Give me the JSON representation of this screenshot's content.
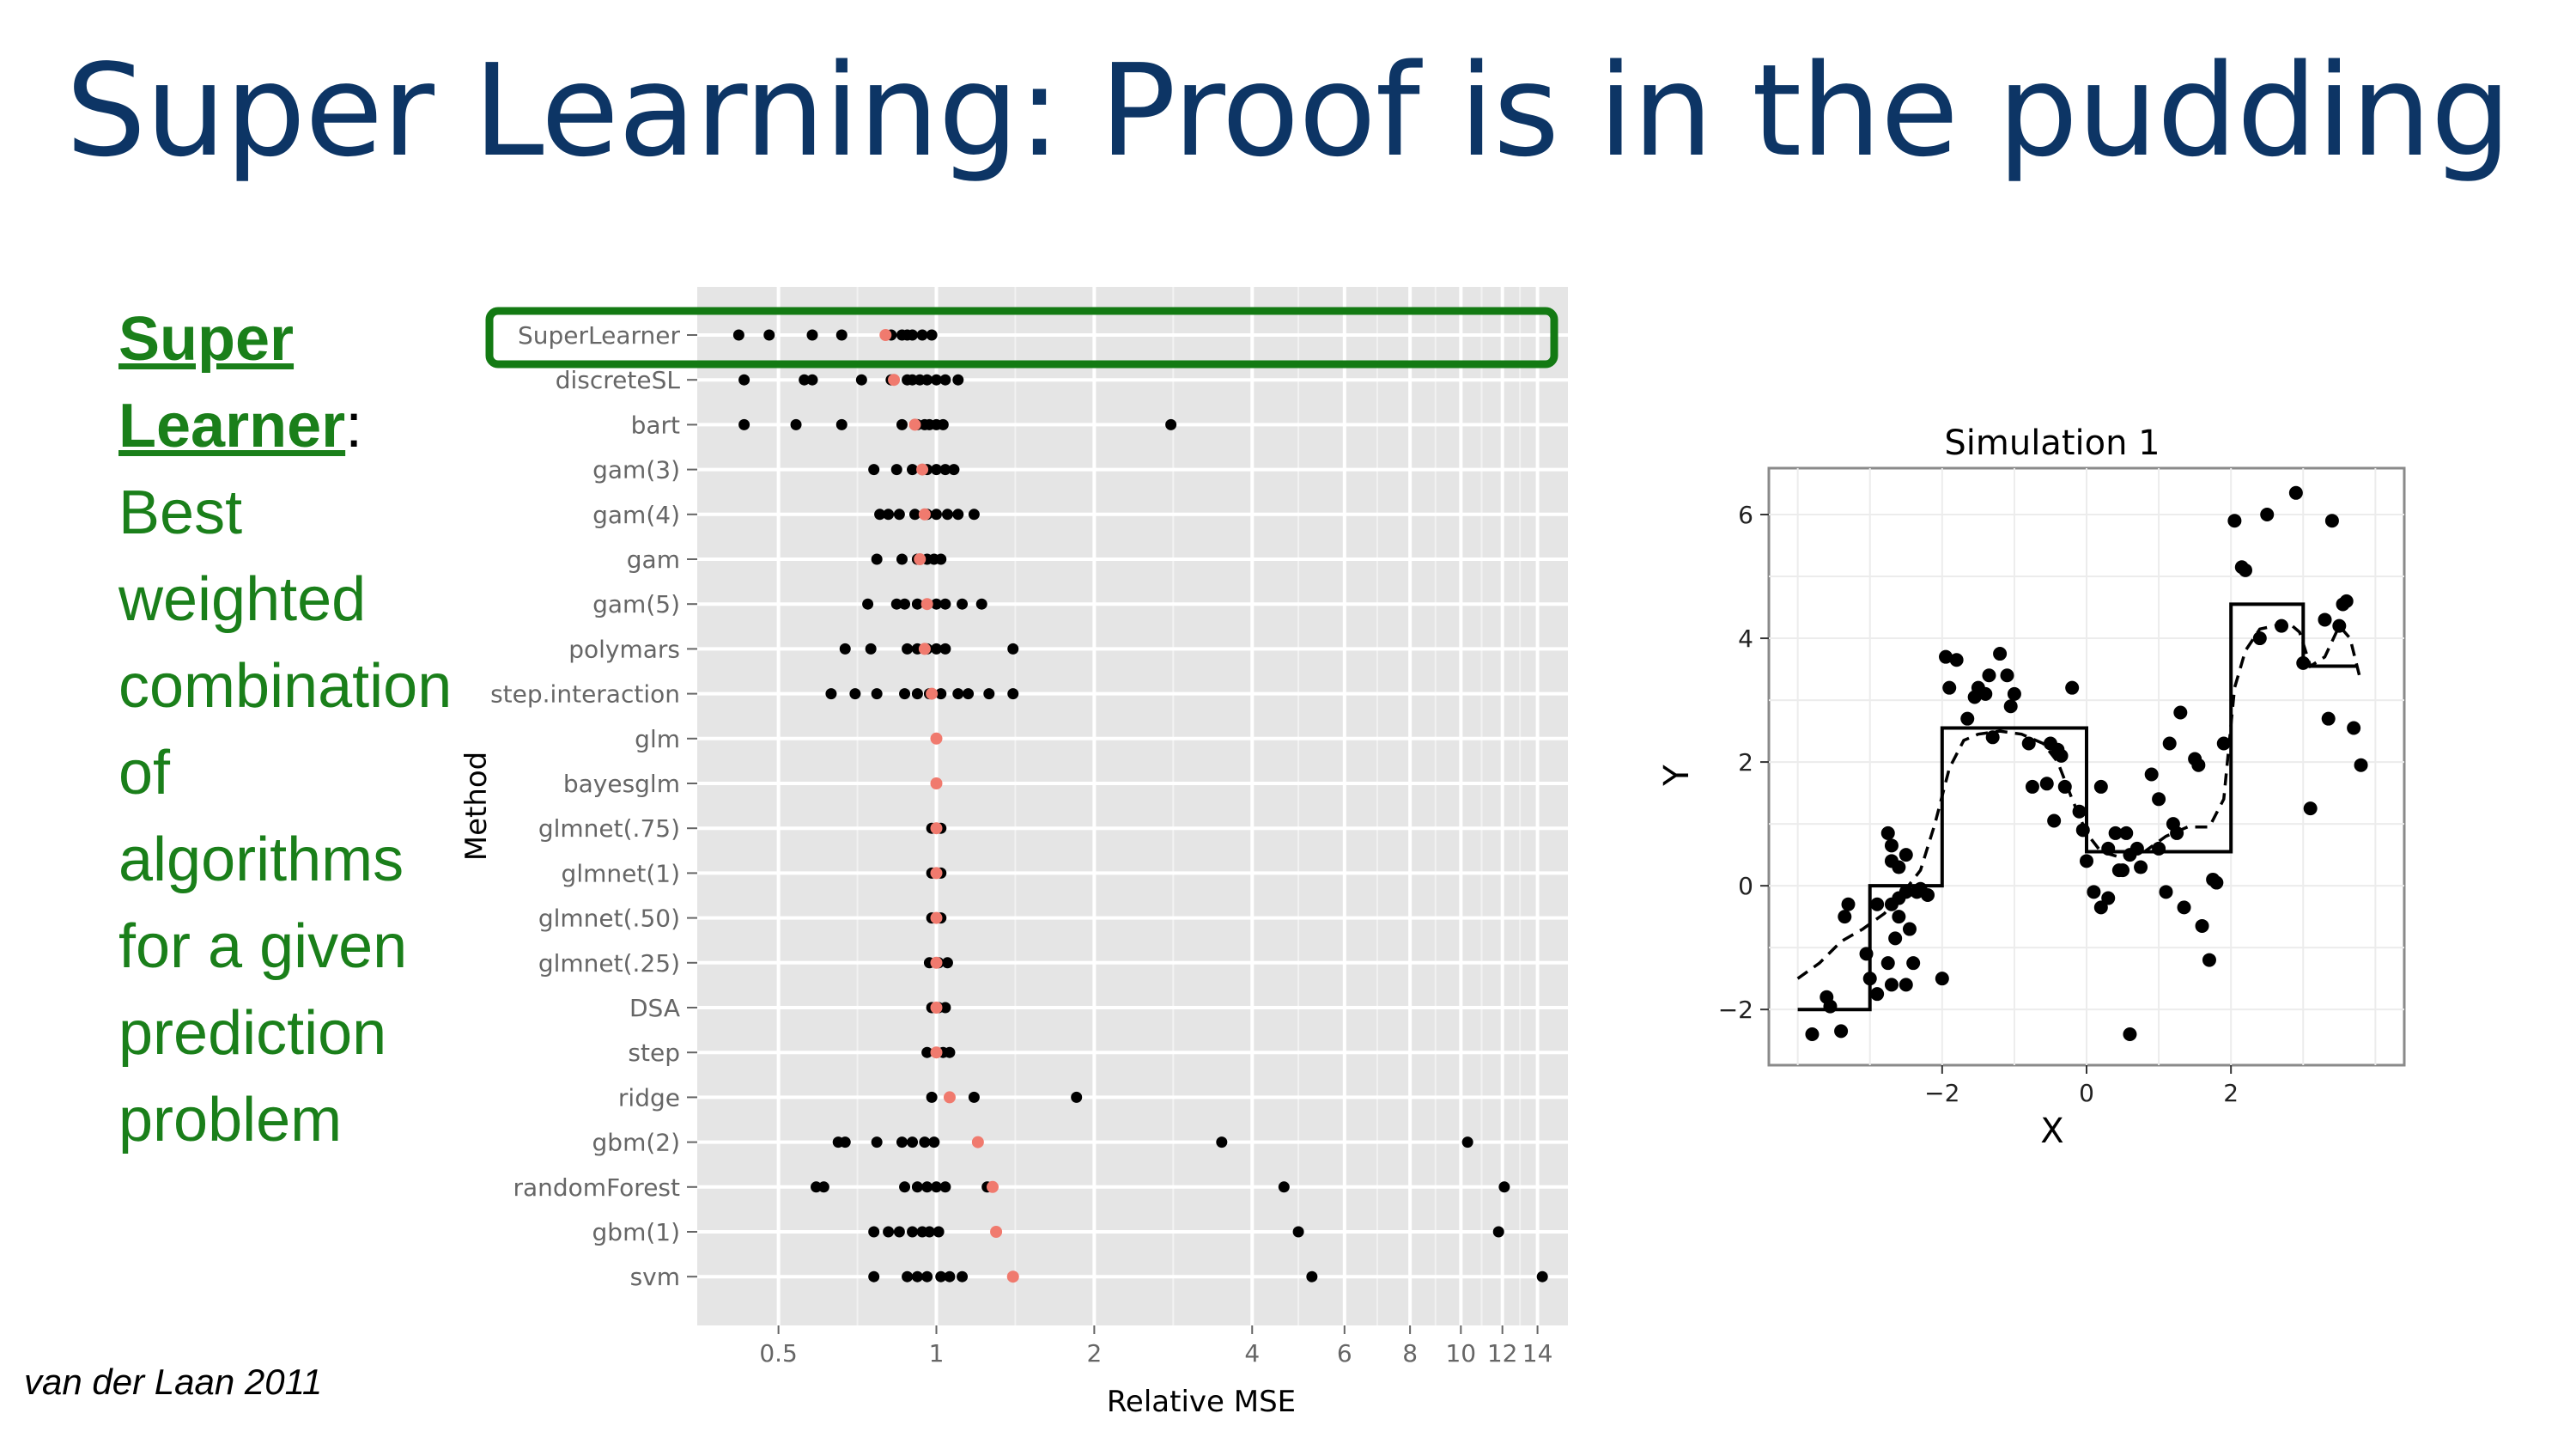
{
  "slide": {
    "title": "Super Learning: Proof is in the pudding",
    "left_term_line1": "Super",
    "left_term_line2": "Learner",
    "left_colon": ":",
    "left_lines": [
      "Best",
      "weighted",
      "combination",
      "of",
      "algorithms",
      "for a given",
      "prediction",
      "problem"
    ],
    "citation": "van der Laan 2011"
  },
  "colors": {
    "title": "#0d3565",
    "text_green": "#1a7f1a",
    "highlight_box": "#137a13",
    "panel_bg": "#e5e5e5",
    "point_black": "#000000",
    "point_red": "#f07a6e"
  },
  "chart_data": [
    {
      "type": "scatter",
      "xlabel": "Relative MSE",
      "ylabel": "Method",
      "x_scale": "log",
      "xlim": [
        0.35,
        16
      ],
      "x_ticks": [
        0.5,
        1,
        2,
        4,
        6,
        8,
        10,
        12,
        14
      ],
      "x_tick_labels": [
        "0.5",
        "1",
        "2",
        "4",
        "6",
        "8",
        "10",
        "12",
        "14"
      ],
      "grid": true,
      "highlighted_category": "SuperLearner",
      "categories": [
        "SuperLearner",
        "discreteSL",
        "bart",
        "gam(3)",
        "gam(4)",
        "gam",
        "gam(5)",
        "polymars",
        "step.interaction",
        "glm",
        "bayesglm",
        "glmnet(.75)",
        "glmnet(1)",
        "glmnet(.50)",
        "glmnet(.25)",
        "DSA",
        "step",
        "ridge",
        "gbm(2)",
        "randomForest",
        "gbm(1)",
        "svm"
      ],
      "series": [
        {
          "values": [
            [
              0.42,
              0.48,
              0.58,
              0.66,
              0.82,
              0.86,
              0.88,
              0.9,
              0.94,
              0.98
            ],
            [
              0.43,
              0.56,
              0.58,
              0.72,
              0.82,
              0.88,
              0.9,
              0.93,
              0.96,
              1.0,
              1.04,
              1.1
            ],
            [
              0.43,
              0.54,
              0.66,
              0.86,
              0.92,
              0.95,
              0.97,
              1.0,
              1.03,
              2.8
            ],
            [
              0.76,
              0.84,
              0.9,
              0.96,
              1.0,
              1.04,
              1.08
            ],
            [
              0.78,
              0.81,
              0.85,
              0.91,
              0.96,
              1.0,
              1.05,
              1.1,
              1.18
            ],
            [
              0.77,
              0.86,
              0.92,
              0.96,
              0.99,
              1.02
            ],
            [
              0.74,
              0.84,
              0.87,
              0.92,
              0.96,
              1.0,
              1.04,
              1.12,
              1.22
            ],
            [
              0.67,
              0.75,
              0.88,
              0.92,
              0.96,
              1.0,
              1.04,
              1.4
            ],
            [
              0.63,
              0.7,
              0.77,
              0.87,
              0.92,
              0.97,
              1.02,
              1.1,
              1.15,
              1.26,
              1.4
            ],
            [],
            [],
            [
              0.98,
              1.02
            ],
            [
              0.98,
              1.02
            ],
            [
              0.98,
              1.02
            ],
            [
              0.97,
              1.01,
              1.05
            ],
            [
              0.98,
              1.01,
              1.04
            ],
            [
              0.96,
              1.0,
              1.03,
              1.06
            ],
            [
              0.98,
              1.18,
              1.85
            ],
            [
              0.65,
              0.67,
              0.77,
              0.86,
              0.9,
              0.95,
              0.99,
              3.5,
              10.3
            ],
            [
              0.59,
              0.61,
              0.87,
              0.92,
              0.96,
              1.0,
              1.04,
              1.25,
              4.6,
              12.1
            ],
            [
              0.76,
              0.81,
              0.85,
              0.9,
              0.94,
              0.97,
              1.01,
              4.9,
              11.8
            ],
            [
              0.76,
              0.88,
              0.92,
              0.96,
              1.02,
              1.06,
              1.12,
              5.2,
              14.3
            ]
          ],
          "color": "#000000"
        },
        {
          "values": [
            0.8,
            0.83,
            0.91,
            0.94,
            0.95,
            0.93,
            0.96,
            0.95,
            0.98,
            1.0,
            1.0,
            1.0,
            1.0,
            1.0,
            1.0,
            1.0,
            1.0,
            1.06,
            1.2,
            1.28,
            1.3,
            1.4
          ],
          "color": "#f07a6e"
        }
      ]
    },
    {
      "type": "scatter",
      "title": "Simulation 1",
      "xlabel": "X",
      "ylabel": "Y",
      "xlim": [
        -4.4,
        4.4
      ],
      "ylim": [
        -2.9,
        6.75
      ],
      "x_ticks": [
        -2,
        0,
        2
      ],
      "x_tick_labels": [
        "−2",
        "0",
        "2"
      ],
      "y_ticks": [
        -2,
        0,
        2,
        4,
        6
      ],
      "y_tick_labels": [
        "−2",
        "0",
        "2",
        "4",
        "6"
      ],
      "grid": true,
      "points": [
        [
          -3.8,
          -2.4
        ],
        [
          -3.6,
          -1.8
        ],
        [
          -3.4,
          -2.35
        ],
        [
          -3.55,
          -1.95
        ],
        [
          -3.3,
          -0.3
        ],
        [
          -3.35,
          -0.5
        ],
        [
          -3.05,
          -1.1
        ],
        [
          -3.0,
          -1.5
        ],
        [
          -2.9,
          -0.3
        ],
        [
          -2.9,
          -1.75
        ],
        [
          -2.75,
          -1.25
        ],
        [
          -2.7,
          -1.6
        ],
        [
          -2.7,
          -0.3
        ],
        [
          -2.6,
          -0.5
        ],
        [
          -2.6,
          -0.2
        ],
        [
          -2.65,
          -0.85
        ],
        [
          -2.5,
          -0.1
        ],
        [
          -2.5,
          -1.6
        ],
        [
          -2.45,
          -0.7
        ],
        [
          -2.4,
          -1.25
        ],
        [
          -2.35,
          -0.1
        ],
        [
          -2.2,
          -0.15
        ],
        [
          -2.3,
          -0.05
        ],
        [
          -2.0,
          -1.5
        ],
        [
          -2.75,
          0.85
        ],
        [
          -2.7,
          0.65
        ],
        [
          -2.7,
          0.4
        ],
        [
          -2.6,
          0.3
        ],
        [
          -2.5,
          0.5
        ],
        [
          -1.95,
          3.7
        ],
        [
          -1.8,
          3.65
        ],
        [
          -1.9,
          3.2
        ],
        [
          -1.65,
          2.7
        ],
        [
          -1.55,
          3.05
        ],
        [
          -1.5,
          3.2
        ],
        [
          -1.4,
          3.1
        ],
        [
          -1.3,
          2.4
        ],
        [
          -1.35,
          3.4
        ],
        [
          -1.2,
          3.75
        ],
        [
          -1.1,
          3.4
        ],
        [
          -1.0,
          3.1
        ],
        [
          -1.05,
          2.9
        ],
        [
          -0.8,
          2.3
        ],
        [
          -0.75,
          1.6
        ],
        [
          -0.55,
          1.65
        ],
        [
          -0.5,
          2.3
        ],
        [
          -0.4,
          2.2
        ],
        [
          -0.35,
          2.1
        ],
        [
          -0.3,
          1.6
        ],
        [
          -0.2,
          3.2
        ],
        [
          -0.45,
          1.05
        ],
        [
          -0.1,
          1.2
        ],
        [
          -0.05,
          0.9
        ],
        [
          0.0,
          0.4
        ],
        [
          0.2,
          1.6
        ],
        [
          0.1,
          -0.1
        ],
        [
          0.2,
          -0.35
        ],
        [
          0.3,
          -0.2
        ],
        [
          0.4,
          0.85
        ],
        [
          0.45,
          0.25
        ],
        [
          0.55,
          0.85
        ],
        [
          0.6,
          0.5
        ],
        [
          0.3,
          0.6
        ],
        [
          0.5,
          0.25
        ],
        [
          0.7,
          0.6
        ],
        [
          0.6,
          -2.4
        ],
        [
          0.75,
          0.3
        ],
        [
          0.9,
          1.8
        ],
        [
          1.0,
          1.4
        ],
        [
          1.0,
          0.6
        ],
        [
          1.1,
          -0.1
        ],
        [
          1.15,
          2.3
        ],
        [
          1.2,
          1.0
        ],
        [
          1.25,
          0.85
        ],
        [
          1.3,
          2.8
        ],
        [
          1.35,
          -0.35
        ],
        [
          1.5,
          2.05
        ],
        [
          1.55,
          1.95
        ],
        [
          1.6,
          -0.65
        ],
        [
          1.7,
          -1.2
        ],
        [
          1.75,
          0.1
        ],
        [
          1.8,
          0.05
        ],
        [
          1.9,
          2.3
        ],
        [
          2.05,
          5.9
        ],
        [
          2.15,
          5.15
        ],
        [
          2.2,
          5.1
        ],
        [
          2.4,
          4.0
        ],
        [
          2.5,
          6.0
        ],
        [
          2.7,
          4.2
        ],
        [
          2.9,
          6.35
        ],
        [
          3.0,
          3.6
        ],
        [
          3.1,
          1.25
        ],
        [
          3.3,
          4.3
        ],
        [
          3.4,
          5.9
        ],
        [
          3.35,
          2.7
        ],
        [
          3.5,
          4.2
        ],
        [
          3.55,
          4.55
        ],
        [
          3.6,
          4.6
        ],
        [
          3.7,
          2.55
        ],
        [
          3.8,
          1.95
        ]
      ],
      "step_function": [
        [
          -4.0,
          -2.0
        ],
        [
          -3.0,
          -2.0
        ],
        [
          -3.0,
          0.0
        ],
        [
          -2.0,
          0.0
        ],
        [
          -2.0,
          2.55
        ],
        [
          0.0,
          2.55
        ],
        [
          0.0,
          0.55
        ],
        [
          2.0,
          0.55
        ],
        [
          2.0,
          4.55
        ],
        [
          3.0,
          4.55
        ],
        [
          3.0,
          3.55
        ],
        [
          3.75,
          3.55
        ]
      ],
      "smooth_fit": [
        [
          -4.0,
          -1.5
        ],
        [
          -3.7,
          -1.25
        ],
        [
          -3.4,
          -0.9
        ],
        [
          -3.1,
          -0.7
        ],
        [
          -2.8,
          -0.45
        ],
        [
          -2.5,
          -0.05
        ],
        [
          -2.3,
          0.25
        ],
        [
          -2.1,
          1.0
        ],
        [
          -1.9,
          1.9
        ],
        [
          -1.7,
          2.35
        ],
        [
          -1.5,
          2.45
        ],
        [
          -1.2,
          2.5
        ],
        [
          -0.9,
          2.45
        ],
        [
          -0.6,
          2.3
        ],
        [
          -0.4,
          2.0
        ],
        [
          -0.2,
          1.4
        ],
        [
          0.0,
          0.85
        ],
        [
          0.2,
          0.55
        ],
        [
          0.5,
          0.45
        ],
        [
          0.8,
          0.55
        ],
        [
          1.1,
          0.8
        ],
        [
          1.4,
          0.95
        ],
        [
          1.7,
          0.95
        ],
        [
          1.9,
          1.4
        ],
        [
          2.05,
          3.2
        ],
        [
          2.2,
          3.8
        ],
        [
          2.4,
          4.15
        ],
        [
          2.6,
          4.2
        ],
        [
          2.8,
          4.25
        ],
        [
          2.95,
          4.1
        ],
        [
          3.1,
          3.55
        ],
        [
          3.3,
          3.7
        ],
        [
          3.5,
          4.2
        ],
        [
          3.65,
          4.0
        ],
        [
          3.8,
          3.3
        ]
      ]
    }
  ]
}
